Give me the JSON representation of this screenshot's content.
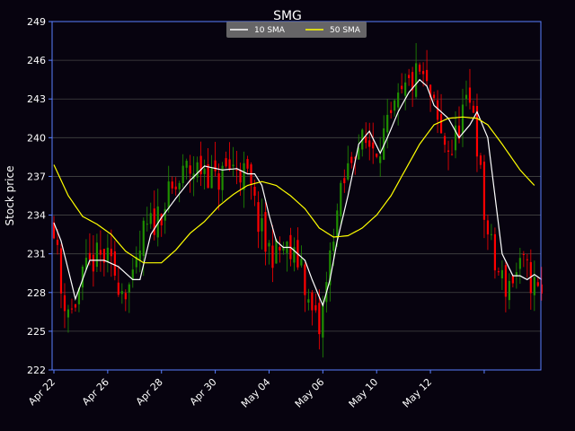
{
  "chart_data": {
    "type": "candlestick",
    "title": "SMG",
    "xlabel": "",
    "ylabel": "Stock price",
    "ylim": [
      222,
      249
    ],
    "yticks": [
      222,
      225,
      228,
      231,
      234,
      237,
      240,
      243,
      246,
      249
    ],
    "xticks": [
      {
        "index": 0,
        "label": "Apr 22"
      },
      {
        "index": 15,
        "label": "Apr 26"
      },
      {
        "index": 30,
        "label": "Apr 28"
      },
      {
        "index": 45,
        "label": "Apr 30"
      },
      {
        "index": 60,
        "label": "May 04"
      },
      {
        "index": 75,
        "label": "May 06"
      },
      {
        "index": 90,
        "label": "May 10"
      },
      {
        "index": 105,
        "label": "May 12"
      },
      {
        "index": 120,
        "label": ""
      }
    ],
    "grid": true,
    "legend_position": "top-center",
    "series": [
      {
        "name": "10 SMA",
        "color": "#ffffff",
        "anchors": [
          [
            0,
            233.4
          ],
          [
            2,
            232
          ],
          [
            6,
            227.5
          ],
          [
            10,
            230.5
          ],
          [
            14,
            230.5
          ],
          [
            18,
            230
          ],
          [
            22,
            229
          ],
          [
            24,
            229
          ],
          [
            27,
            232.5
          ],
          [
            30,
            233.8
          ],
          [
            34,
            235.3
          ],
          [
            38,
            236.7
          ],
          [
            42,
            237.8
          ],
          [
            47,
            237.5
          ],
          [
            51,
            237.6
          ],
          [
            54,
            237.2
          ],
          [
            56,
            237.2
          ],
          [
            58,
            236.3
          ],
          [
            60,
            234
          ],
          [
            62,
            232
          ],
          [
            64,
            231.5
          ],
          [
            66,
            231.5
          ],
          [
            70,
            230.5
          ],
          [
            72,
            229
          ],
          [
            75,
            227
          ],
          [
            77,
            229
          ],
          [
            79,
            232
          ],
          [
            82,
            235.5
          ],
          [
            85,
            239.5
          ],
          [
            88,
            240.5
          ],
          [
            91,
            238.8
          ],
          [
            93,
            240
          ],
          [
            96,
            242
          ],
          [
            99,
            243.5
          ],
          [
            102,
            244.5
          ],
          [
            104,
            244
          ],
          [
            106,
            242.5
          ],
          [
            110,
            241.5
          ],
          [
            113,
            240
          ],
          [
            116,
            241
          ],
          [
            118,
            242
          ],
          [
            121,
            240
          ],
          [
            125,
            231
          ],
          [
            128,
            229.3
          ],
          [
            130,
            229.3
          ],
          [
            132,
            229
          ],
          [
            134,
            229.4
          ],
          [
            136,
            229
          ]
        ]
      },
      {
        "name": "50 SMA",
        "color": "#ffff00",
        "anchors": [
          [
            0,
            237.9
          ],
          [
            4,
            235.5
          ],
          [
            8,
            233.9
          ],
          [
            12,
            233.3
          ],
          [
            16,
            232.5
          ],
          [
            20,
            231.2
          ],
          [
            25,
            230.3
          ],
          [
            30,
            230.3
          ],
          [
            34,
            231.3
          ],
          [
            38,
            232.6
          ],
          [
            42,
            233.5
          ],
          [
            46,
            234.7
          ],
          [
            50,
            235.6
          ],
          [
            54,
            236.3
          ],
          [
            58,
            236.6
          ],
          [
            62,
            236.3
          ],
          [
            66,
            235.5
          ],
          [
            70,
            234.5
          ],
          [
            74,
            233
          ],
          [
            78,
            232.3
          ],
          [
            82,
            232.4
          ],
          [
            86,
            233
          ],
          [
            90,
            234
          ],
          [
            94,
            235.5
          ],
          [
            98,
            237.5
          ],
          [
            102,
            239.5
          ],
          [
            106,
            241
          ],
          [
            110,
            241.5
          ],
          [
            114,
            241.6
          ],
          [
            118,
            241.5
          ],
          [
            121,
            241
          ],
          [
            125,
            239.5
          ],
          [
            130,
            237.5
          ],
          [
            134,
            236.3
          ]
        ]
      }
    ],
    "candles": {
      "count": 137,
      "up_color": "#1f8f00",
      "down_color": "#ff0000",
      "close_path": [
        [
          0,
          233.5
        ],
        [
          2,
          228
        ],
        [
          5,
          226.5
        ],
        [
          8,
          229
        ],
        [
          11,
          230.5
        ],
        [
          14,
          230.7
        ],
        [
          17,
          229.5
        ],
        [
          19,
          228.5
        ],
        [
          22,
          228.5
        ],
        [
          25,
          232.5
        ],
        [
          28,
          233.5
        ],
        [
          31,
          235
        ],
        [
          34,
          236
        ],
        [
          37,
          237.5
        ],
        [
          40,
          237.5
        ],
        [
          42,
          237.8
        ],
        [
          45,
          236.5
        ],
        [
          48,
          237.5
        ],
        [
          51,
          237.8
        ],
        [
          54,
          236.8
        ],
        [
          57,
          233.5
        ],
        [
          59,
          231.5
        ],
        [
          62,
          231
        ],
        [
          64,
          231.5
        ],
        [
          67,
          230.5
        ],
        [
          69,
          230.5
        ],
        [
          71,
          227
        ],
        [
          74,
          225
        ],
        [
          76,
          228.5
        ],
        [
          78,
          233
        ],
        [
          81,
          236.5
        ],
        [
          84,
          239.5
        ],
        [
          87,
          239.5
        ],
        [
          90,
          239.5
        ],
        [
          93,
          240.5
        ],
        [
          96,
          242.5
        ],
        [
          99,
          244
        ],
        [
          102,
          245
        ],
        [
          105,
          243
        ],
        [
          108,
          240
        ],
        [
          111,
          239
        ],
        [
          114,
          242
        ],
        [
          117,
          242.5
        ],
        [
          120,
          234
        ],
        [
          123,
          230
        ],
        [
          126,
          228.5
        ],
        [
          129,
          229.5
        ],
        [
          131,
          230
        ],
        [
          134,
          228.5
        ],
        [
          136,
          227.5
        ]
      ]
    }
  },
  "legend": {
    "items": [
      "10 SMA",
      "50 SMA"
    ]
  },
  "colors": {
    "background": "#07030f",
    "axes": "#5a7fff",
    "grid": "#444444"
  }
}
